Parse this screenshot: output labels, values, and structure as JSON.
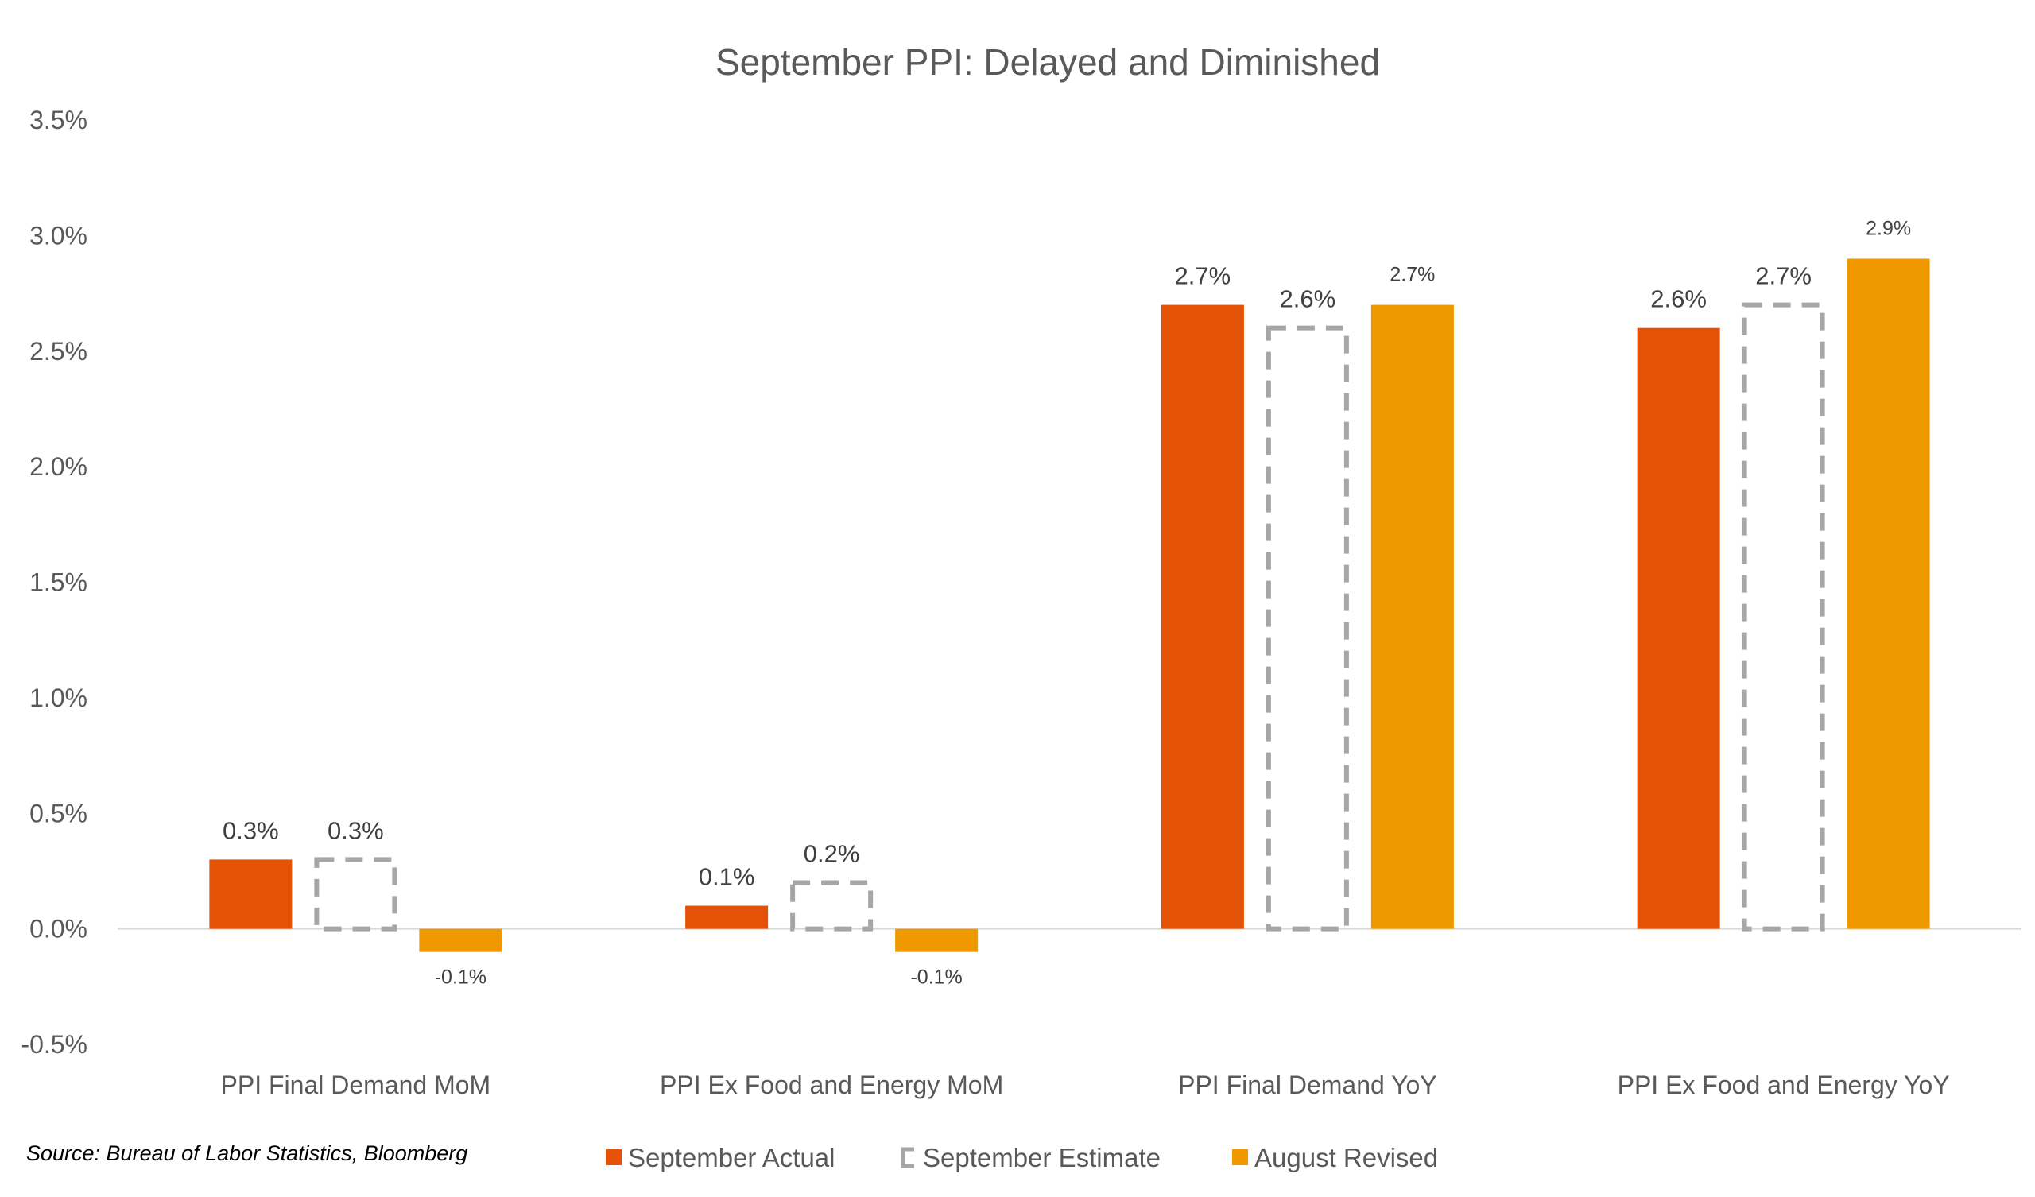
{
  "chart_data": {
    "type": "bar",
    "title": "September PPI: Delayed and Diminished",
    "xlabel": "",
    "ylabel": "",
    "ylim": [
      -0.5,
      3.5
    ],
    "yticks": [
      -0.5,
      0.0,
      0.5,
      1.0,
      1.5,
      2.0,
      2.5,
      3.0,
      3.5
    ],
    "ytick_labels": [
      "-0.5%",
      "0.0%",
      "0.5%",
      "1.0%",
      "1.5%",
      "2.0%",
      "2.5%",
      "3.0%",
      "3.5%"
    ],
    "grid": false,
    "categories": [
      "PPI Final Demand MoM",
      "PPI Ex Food and Energy MoM",
      "PPI Final Demand YoY",
      "PPI Ex Food and Energy YoY"
    ],
    "series": [
      {
        "name": "September Actual",
        "values": [
          0.3,
          0.1,
          2.7,
          2.6
        ],
        "labels": [
          "0.3%",
          "0.1%",
          "2.7%",
          "2.6%"
        ],
        "color": "#E35205",
        "style": "solid"
      },
      {
        "name": "September Estimate",
        "values": [
          0.3,
          0.2,
          2.6,
          2.7
        ],
        "labels": [
          "0.3%",
          "0.2%",
          "2.6%",
          "2.7%"
        ],
        "color": "#A6A6A6",
        "style": "dashed-outline"
      },
      {
        "name": "August Revised",
        "values": [
          -0.1,
          -0.1,
          2.7,
          2.9
        ],
        "labels": [
          "-0.1%",
          "-0.1%",
          "2.7%",
          "2.9%"
        ],
        "color": "#F09800",
        "style": "solid"
      }
    ],
    "legend_position": "bottom",
    "source": "Source: Bureau of Labor Statistics, Bloomberg"
  }
}
